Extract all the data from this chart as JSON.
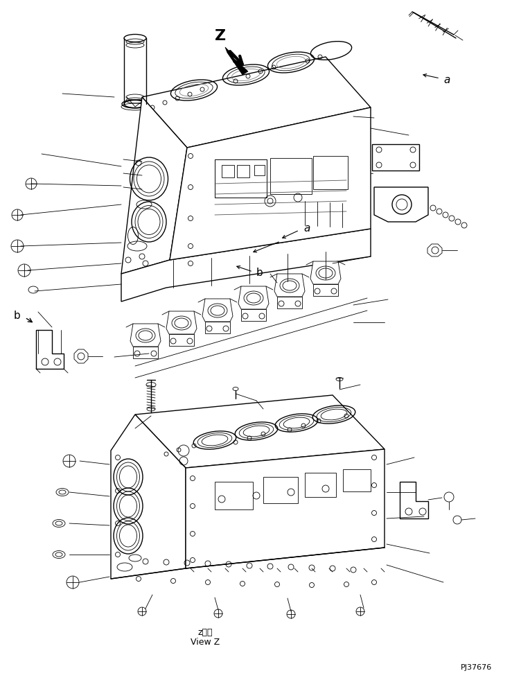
{
  "background_color": "#ffffff",
  "line_color": "#000000",
  "label_z": "Z",
  "label_a": "a",
  "label_b": "b",
  "label_view_z_jp": "z　視",
  "label_view_z_en": "View Z",
  "label_part_number": "PJ37676",
  "figsize": [
    7.39,
    9.81
  ],
  "dpi": 100
}
